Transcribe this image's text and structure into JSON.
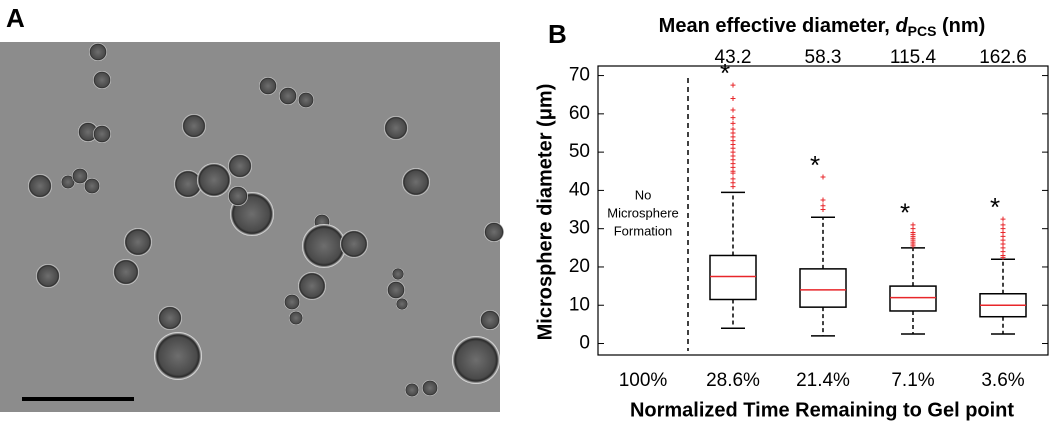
{
  "panel_a": {
    "label": "A"
  },
  "chart_data": {
    "type": "box",
    "panel_label": "B",
    "top_axis_title": [
      "Mean effective diameter, ",
      "d",
      "PCS",
      " (nm)"
    ],
    "y_label": "Microsphere diameter (μm)",
    "x_label": "Normalized Time Remaining to Gel point",
    "categories": [
      "100%",
      "28.6%",
      "21.4%",
      "7.1%",
      "3.6%"
    ],
    "top_categories": [
      null,
      "43.2",
      "58.3",
      "115.4",
      "162.6"
    ],
    "annotation": [
      "No",
      "Microsphere",
      "Formation"
    ],
    "box_color": "#000000",
    "median_color": "#e8262a",
    "outlier_color": "#e8262a",
    "boxes": [
      null,
      {
        "min": 4,
        "q1": 11.5,
        "median": 17.5,
        "q3": 23,
        "max": 39.5,
        "outliers": [
          41,
          42,
          43,
          44.5,
          45,
          46,
          47,
          48,
          49,
          50,
          51,
          52,
          53,
          54,
          55,
          56,
          57.5,
          59,
          61,
          64,
          67.5
        ],
        "marker": "*"
      },
      {
        "min": 2,
        "q1": 9.5,
        "median": 14,
        "q3": 19.5,
        "max": 33,
        "outliers": [
          35,
          36,
          37.5,
          43.5
        ],
        "marker": "*"
      },
      {
        "min": 2.5,
        "q1": 8.5,
        "median": 12,
        "q3": 15,
        "max": 25,
        "outliers": [
          25.5,
          26,
          26.5,
          27,
          27.5,
          28,
          28.5,
          29,
          30,
          31
        ],
        "marker": "*"
      },
      {
        "min": 2.5,
        "q1": 7,
        "median": 10,
        "q3": 13,
        "max": 22,
        "outliers": [
          22.5,
          23,
          24,
          25,
          26,
          27,
          28,
          29,
          30,
          31,
          32.5
        ],
        "marker": "*"
      }
    ],
    "ylim": [
      -3,
      72.5
    ],
    "yticks": [
      0,
      10,
      20,
      30,
      40,
      50,
      60,
      70
    ]
  }
}
